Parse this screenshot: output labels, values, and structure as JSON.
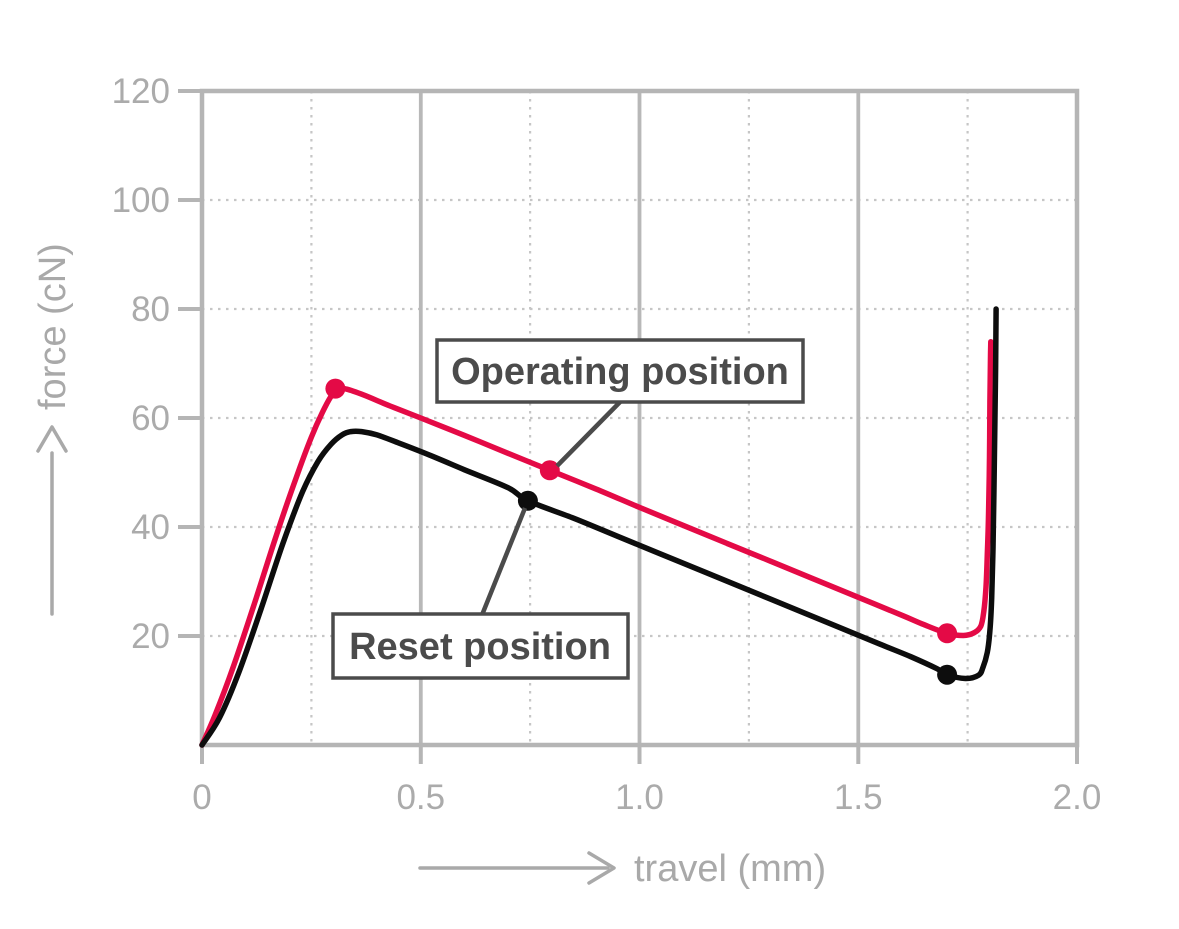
{
  "page": {
    "background": "#ffffff",
    "description": "Force-travel diagram of a key switch with press and release curves"
  },
  "colors": {
    "curve_red": "#e40a46",
    "curve_black": "#0d0d0d",
    "axis_frame": "#b5b5b5",
    "grid_solid": "#b8b8b8",
    "grid_dotted": "#c6c6c6",
    "tick_text": "#ababab",
    "axis_title_text": "#a9a9a9",
    "annotation": "#4b4b4b",
    "annotation_box_fill": "#ffffff"
  },
  "chart_data": {
    "type": "line",
    "title": "",
    "xlabel": "travel (mm)",
    "ylabel": "force (cN)",
    "xlim": [
      0,
      2.0
    ],
    "ylim": [
      0,
      120
    ],
    "grid": {
      "vertical_major": "solid",
      "vertical_minor": "dotted",
      "horizontal_major": "dotted",
      "frame": "solid"
    },
    "legend": "none",
    "x_ticks": [
      {
        "value": 0,
        "label": "0"
      },
      {
        "value": 0.5,
        "label": "0.5"
      },
      {
        "value": 1.0,
        "label": "1.0"
      },
      {
        "value": 1.5,
        "label": "1.5"
      },
      {
        "value": 2.0,
        "label": "2.0"
      }
    ],
    "x_minor_gridlines": [
      0.25,
      0.75,
      1.25,
      1.75
    ],
    "y_ticks": [
      {
        "value": 20,
        "label": "20"
      },
      {
        "value": 40,
        "label": "40"
      },
      {
        "value": 60,
        "label": "60"
      },
      {
        "value": 80,
        "label": "80"
      },
      {
        "value": 100,
        "label": "100"
      },
      {
        "value": 120,
        "label": "120"
      }
    ],
    "series": [
      {
        "name": "red-curve-press-stroke",
        "color": "#e40a46",
        "points": [
          [
            0,
            0
          ],
          [
            0.03,
            5.5
          ],
          [
            0.07,
            14
          ],
          [
            0.12,
            26
          ],
          [
            0.17,
            38.5
          ],
          [
            0.215,
            49
          ],
          [
            0.25,
            56.5
          ],
          [
            0.275,
            61
          ],
          [
            0.295,
            64
          ],
          [
            0.31,
            65.4
          ],
          [
            0.33,
            65.3
          ],
          [
            0.37,
            64.2
          ],
          [
            0.43,
            62.2
          ],
          [
            0.5,
            60
          ],
          [
            0.6,
            56.8
          ],
          [
            0.7,
            53.5
          ],
          [
            0.795,
            50.4
          ],
          [
            0.9,
            47
          ],
          [
            1.0,
            43.6
          ],
          [
            1.1,
            40.3
          ],
          [
            1.2,
            37
          ],
          [
            1.3,
            33.7
          ],
          [
            1.4,
            30.4
          ],
          [
            1.5,
            27.1
          ],
          [
            1.6,
            23.8
          ],
          [
            1.65,
            22.1
          ],
          [
            1.703,
            20.5
          ],
          [
            1.74,
            20.1
          ],
          [
            1.765,
            20.6
          ],
          [
            1.78,
            21.8
          ],
          [
            1.787,
            24.5
          ],
          [
            1.792,
            29
          ],
          [
            1.795,
            35
          ],
          [
            1.798,
            43
          ],
          [
            1.8,
            53
          ],
          [
            1.801,
            63
          ],
          [
            1.802,
            70
          ],
          [
            1.803,
            74
          ]
        ]
      },
      {
        "name": "black-curve-release-stroke",
        "color": "#0d0d0d",
        "points": [
          [
            0,
            0
          ],
          [
            0.04,
            5
          ],
          [
            0.085,
            13.5
          ],
          [
            0.135,
            25
          ],
          [
            0.185,
            37
          ],
          [
            0.23,
            46.5
          ],
          [
            0.265,
            52
          ],
          [
            0.295,
            55.2
          ],
          [
            0.32,
            56.9
          ],
          [
            0.34,
            57.5
          ],
          [
            0.365,
            57.5
          ],
          [
            0.4,
            56.9
          ],
          [
            0.45,
            55.4
          ],
          [
            0.52,
            53.2
          ],
          [
            0.6,
            50.5
          ],
          [
            0.7,
            47.2
          ],
          [
            0.745,
            44.8
          ],
          [
            0.85,
            41.6
          ],
          [
            0.95,
            38.3
          ],
          [
            1.05,
            35
          ],
          [
            1.15,
            31.7
          ],
          [
            1.25,
            28.4
          ],
          [
            1.35,
            25.1
          ],
          [
            1.45,
            21.8
          ],
          [
            1.55,
            18.5
          ],
          [
            1.62,
            16.2
          ],
          [
            1.68,
            14
          ],
          [
            1.703,
            12.9
          ],
          [
            1.745,
            12.2
          ],
          [
            1.775,
            12.8
          ],
          [
            1.785,
            14.2
          ],
          [
            1.795,
            17
          ],
          [
            1.801,
            21
          ],
          [
            1.805,
            27
          ],
          [
            1.808,
            36
          ],
          [
            1.81,
            46
          ],
          [
            1.812,
            58
          ],
          [
            1.814,
            69
          ],
          [
            1.815,
            80
          ]
        ]
      }
    ],
    "markers": [
      {
        "series": 0,
        "x": 0.305,
        "y": 65.4
      },
      {
        "series": 0,
        "x": 0.795,
        "y": 50.4
      },
      {
        "series": 0,
        "x": 1.703,
        "y": 20.5
      },
      {
        "series": 1,
        "x": 0.745,
        "y": 44.8
      },
      {
        "series": 1,
        "x": 1.703,
        "y": 12.9
      }
    ],
    "annotations": [
      {
        "label": "Operating position",
        "target_series": 0,
        "x": 0.795,
        "y": 50.4
      },
      {
        "label": "Reset position",
        "target_series": 1,
        "x": 0.745,
        "y": 44.8
      }
    ]
  }
}
